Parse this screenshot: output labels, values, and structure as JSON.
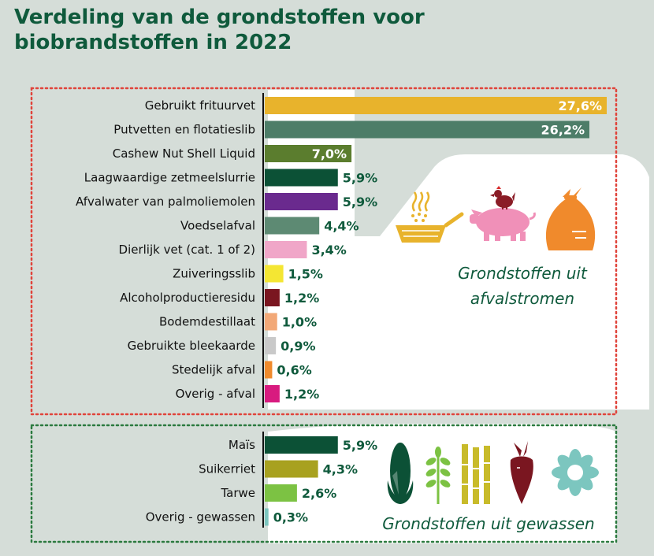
{
  "title": "Verdeling van de grondstoffen voor biobrandstoffen in 2022",
  "chart_data": [
    {
      "type": "bar",
      "orientation": "horizontal",
      "section_label": [
        "Grondstoffen uit",
        "afvalstromen"
      ],
      "categories": [
        "Gebruikt frituurvet",
        "Putvetten en flotatieslib",
        "Cashew Nut Shell Liquid",
        "Laagwaardige zetmeelslurrie",
        "Afvalwater van palmoliemolen",
        "Voedselafval",
        "Dierlijk vet (cat. 1 of 2)",
        "Zuiveringsslib",
        "Alcoholproductieresidu",
        "Bodemdestillaat",
        "Gebruikte bleekaarde",
        "Stedelijk afval",
        "Overig - afval"
      ],
      "values": [
        27.6,
        26.2,
        7.0,
        5.9,
        5.9,
        4.4,
        3.4,
        1.5,
        1.2,
        1.0,
        0.9,
        0.6,
        1.2
      ],
      "value_labels": [
        "27,6%",
        "26,2%",
        "7,0%",
        "5,9%",
        "5,9%",
        "4,4%",
        "3,4%",
        "1,5%",
        "1,2%",
        "1,0%",
        "0,9%",
        "0,6%",
        "1,2%"
      ],
      "colors": [
        "#e8b32c",
        "#4d7d68",
        "#5b7d2e",
        "#0c5136",
        "#6a2a8e",
        "#5d8a73",
        "#f0a6c8",
        "#f4e633",
        "#7a1620",
        "#f2a877",
        "#c9c9c9",
        "#f08a2c",
        "#d81b7f"
      ],
      "unit": "%"
    },
    {
      "type": "bar",
      "orientation": "horizontal",
      "section_label": [
        "Grondstoffen uit gewassen"
      ],
      "categories": [
        "Maïs",
        "Suikerriet",
        "Tarwe",
        "Overig - gewassen"
      ],
      "values": [
        5.9,
        4.3,
        2.6,
        0.3
      ],
      "value_labels": [
        "5,9%",
        "4,3%",
        "2,6%",
        "0,3%"
      ],
      "colors": [
        "#0c5136",
        "#a8a11f",
        "#7cc243",
        "#7cc6bf"
      ],
      "unit": "%"
    }
  ],
  "colors": {
    "background": "#d5ddd8",
    "title": "#0f5a3c",
    "waste_border": "#e0443b",
    "crop_border": "#2b7a3f",
    "value_text": "#0f5a3c",
    "inside_value_text": "#ffffff"
  },
  "icons": {
    "waste": [
      "fryer-basket-icon",
      "pig-with-chicken-icon",
      "waste-bag-icon"
    ],
    "crops": [
      "corn-icon",
      "wheat-icon",
      "sugarcane-icon",
      "beet-icon",
      "sunflower-icon"
    ]
  }
}
